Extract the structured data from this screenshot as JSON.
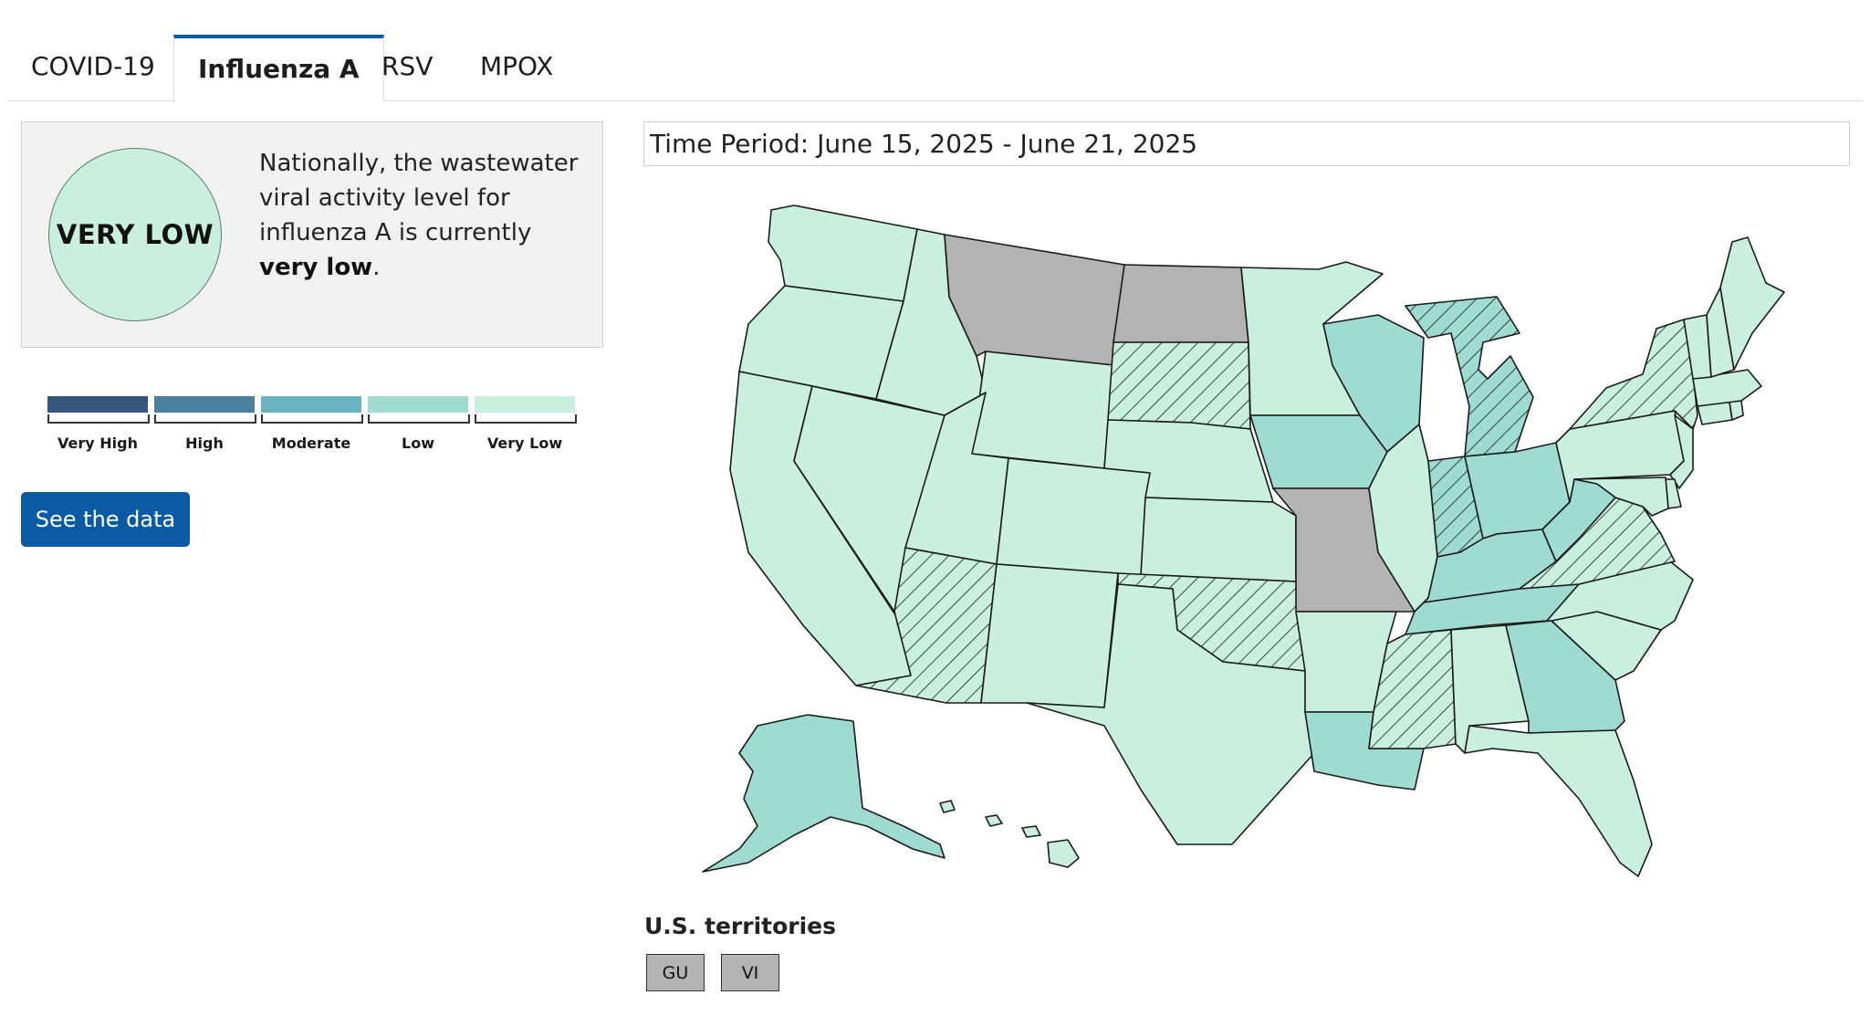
{
  "tabs": [
    {
      "label": "COVID-19",
      "active": false
    },
    {
      "label": "Influenza A",
      "active": true
    },
    {
      "label": "RSV",
      "active": false
    },
    {
      "label": "MPOX",
      "active": false
    }
  ],
  "summary": {
    "level": "VERY LOW",
    "text_before": "Nationally, the wastewater viral activity level for influenza A is currently ",
    "text_bold": "very low",
    "text_after": "."
  },
  "legend": [
    {
      "label": "Very High",
      "color": "#35577f"
    },
    {
      "label": "High",
      "color": "#4a7f9d"
    },
    {
      "label": "Moderate",
      "color": "#6ab4c2"
    },
    {
      "label": "Low",
      "color": "#9edbd0"
    },
    {
      "label": "Very Low",
      "color": "#c8f0dc"
    }
  ],
  "see_data_label": "See the data",
  "time_period": "Time Period: June 15, 2025 - June 21, 2025",
  "map": {
    "no_data_color": "#b3b3b3",
    "states": [
      {
        "code": "WA",
        "level": "Very Low"
      },
      {
        "code": "OR",
        "level": "Very Low"
      },
      {
        "code": "CA",
        "level": "Very Low"
      },
      {
        "code": "NV",
        "level": "Very Low"
      },
      {
        "code": "ID",
        "level": "Very Low"
      },
      {
        "code": "MT",
        "level": "No Data"
      },
      {
        "code": "WY",
        "level": "Very Low"
      },
      {
        "code": "UT",
        "level": "Very Low"
      },
      {
        "code": "AZ",
        "level": "Very Low",
        "hatched": true
      },
      {
        "code": "CO",
        "level": "Very Low"
      },
      {
        "code": "NM",
        "level": "Very Low"
      },
      {
        "code": "ND",
        "level": "No Data"
      },
      {
        "code": "SD",
        "level": "Very Low",
        "hatched": true
      },
      {
        "code": "NE",
        "level": "Very Low"
      },
      {
        "code": "KS",
        "level": "Very Low"
      },
      {
        "code": "OK",
        "level": "Very Low",
        "hatched": true
      },
      {
        "code": "TX",
        "level": "Very Low"
      },
      {
        "code": "MN",
        "level": "Very Low"
      },
      {
        "code": "IA",
        "level": "Low"
      },
      {
        "code": "MO",
        "level": "No Data"
      },
      {
        "code": "AR",
        "level": "Very Low"
      },
      {
        "code": "LA",
        "level": "Low"
      },
      {
        "code": "WI",
        "level": "Low"
      },
      {
        "code": "IL",
        "level": "Very Low"
      },
      {
        "code": "MI",
        "level": "Low",
        "hatched": true
      },
      {
        "code": "IN",
        "level": "Low",
        "hatched": true
      },
      {
        "code": "OH",
        "level": "Low"
      },
      {
        "code": "KY",
        "level": "Low"
      },
      {
        "code": "TN",
        "level": "Low"
      },
      {
        "code": "MS",
        "level": "Very Low",
        "hatched": true
      },
      {
        "code": "AL",
        "level": "Very Low"
      },
      {
        "code": "GA",
        "level": "Low"
      },
      {
        "code": "FL",
        "level": "Very Low"
      },
      {
        "code": "SC",
        "level": "Very Low"
      },
      {
        "code": "NC",
        "level": "Very Low"
      },
      {
        "code": "VA",
        "level": "Very Low",
        "hatched": true
      },
      {
        "code": "WV",
        "level": "Low"
      },
      {
        "code": "PA",
        "level": "Very Low"
      },
      {
        "code": "NY",
        "level": "Very Low",
        "hatched": true
      },
      {
        "code": "NJ",
        "level": "Very Low"
      },
      {
        "code": "DE",
        "level": "Very Low"
      },
      {
        "code": "MD",
        "level": "Very Low"
      },
      {
        "code": "CT",
        "level": "Very Low"
      },
      {
        "code": "RI",
        "level": "Very Low"
      },
      {
        "code": "MA",
        "level": "Very Low"
      },
      {
        "code": "VT",
        "level": "Very Low"
      },
      {
        "code": "NH",
        "level": "Very Low"
      },
      {
        "code": "ME",
        "level": "Very Low"
      },
      {
        "code": "AK",
        "level": "Low"
      },
      {
        "code": "HI",
        "level": "Very Low"
      }
    ]
  },
  "territories": {
    "title": "U.S. territories",
    "items": [
      {
        "label": "GU"
      },
      {
        "label": "VI"
      }
    ]
  }
}
